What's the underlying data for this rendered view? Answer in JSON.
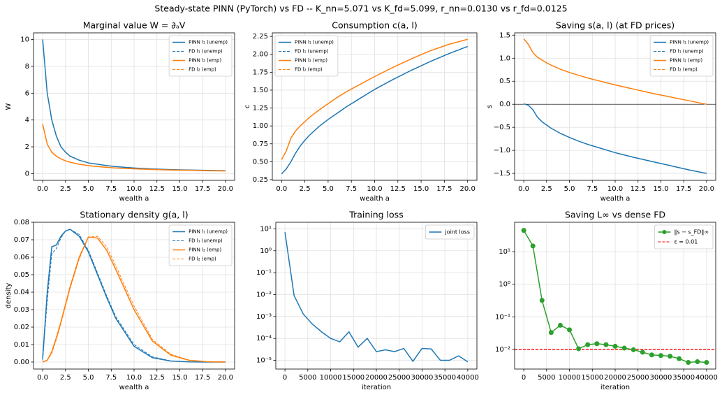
{
  "title": "Steady-state PINN (PyTorch) vs FD  --  K_nn=5.071 vs K_fd=5.099,  r_nn=0.0130 vs r_fd=0.0125",
  "chart_data": [
    {
      "type": "line",
      "title": "Marginal value  W = ∂ₐV",
      "x_label": "wealth a",
      "y_label": "W",
      "x": [
        0,
        0.5,
        1,
        1.5,
        2,
        2.5,
        3,
        4,
        5,
        6,
        7,
        8,
        10,
        12,
        14,
        16,
        18,
        20
      ],
      "xlim": [
        -1,
        21
      ],
      "ylim": [
        -0.5,
        10.5
      ],
      "xticks": [
        {
          "value": 0,
          "label": "0.0"
        },
        2.5,
        {
          "value": 5,
          "label": "5.0"
        },
        7.5,
        {
          "value": 10,
          "label": "10.0"
        },
        12.5,
        {
          "value": 15,
          "label": "15.0"
        },
        17.5,
        {
          "value": 20,
          "label": "20.0"
        }
      ],
      "yticks": [
        0,
        2,
        4,
        6,
        8,
        10
      ],
      "grid": true,
      "legend": "upper right",
      "series": [
        {
          "name": "PINN l₁ (unemp)",
          "color": "#1f77b4",
          "style": "solid",
          "values": [
            10.0,
            6.0,
            4.0,
            2.8,
            2.0,
            1.6,
            1.3,
            1.0,
            0.8,
            0.7,
            0.6,
            0.52,
            0.42,
            0.35,
            0.3,
            0.27,
            0.24,
            0.22
          ]
        },
        {
          "name": "FD l₁ (unemp)",
          "color": "#1f77b4",
          "style": "dashed",
          "values": [
            10.0,
            6.0,
            4.0,
            2.8,
            2.0,
            1.6,
            1.3,
            1.0,
            0.8,
            0.7,
            0.6,
            0.52,
            0.42,
            0.35,
            0.3,
            0.27,
            0.24,
            0.22
          ]
        },
        {
          "name": "PINN l₂ (emp)",
          "color": "#ff7f0e",
          "style": "solid",
          "values": [
            3.7,
            2.2,
            1.6,
            1.3,
            1.1,
            0.95,
            0.85,
            0.7,
            0.6,
            0.52,
            0.47,
            0.42,
            0.36,
            0.31,
            0.27,
            0.25,
            0.22,
            0.2
          ]
        },
        {
          "name": "FD l₂ (emp)",
          "color": "#ff7f0e",
          "style": "dashed",
          "values": [
            3.7,
            2.2,
            1.6,
            1.3,
            1.1,
            0.95,
            0.85,
            0.7,
            0.6,
            0.52,
            0.47,
            0.42,
            0.36,
            0.31,
            0.27,
            0.25,
            0.22,
            0.2
          ]
        }
      ]
    },
    {
      "type": "line",
      "title": "Consumption  c(a, l)",
      "x_label": "wealth a",
      "y_label": "c",
      "x": [
        0,
        0.5,
        1,
        1.5,
        2,
        2.5,
        3,
        4,
        5,
        6,
        7,
        8,
        10,
        12,
        14,
        16,
        18,
        20
      ],
      "xlim": [
        -1,
        21
      ],
      "ylim": [
        0.24,
        2.3
      ],
      "xticks": [
        {
          "value": 0,
          "label": "0.0"
        },
        2.5,
        {
          "value": 5,
          "label": "5.0"
        },
        7.5,
        {
          "value": 10,
          "label": "10.0"
        },
        12.5,
        {
          "value": 15,
          "label": "15.0"
        },
        17.5,
        {
          "value": 20,
          "label": "20.0"
        }
      ],
      "yticks": [
        0.25,
        {
          "value": 0.5,
          "label": "0.50"
        },
        0.75,
        {
          "value": 1,
          "label": "1.00"
        },
        1.25,
        {
          "value": 1.5,
          "label": "1.50"
        },
        1.75,
        {
          "value": 2,
          "label": "2.00"
        },
        2.25
      ],
      "grid": true,
      "legend": "upper left",
      "series": [
        {
          "name": "PINN l₁ (unemp)",
          "color": "#1f77b4",
          "style": "solid",
          "values": [
            0.33,
            0.4,
            0.5,
            0.62,
            0.72,
            0.8,
            0.87,
            0.99,
            1.09,
            1.18,
            1.27,
            1.35,
            1.51,
            1.65,
            1.78,
            1.9,
            2.01,
            2.11
          ]
        },
        {
          "name": "FD l₁ (unemp)",
          "color": "#1f77b4",
          "style": "dashed",
          "values": [
            0.33,
            0.4,
            0.5,
            0.62,
            0.72,
            0.8,
            0.87,
            0.99,
            1.09,
            1.18,
            1.27,
            1.35,
            1.51,
            1.65,
            1.78,
            1.9,
            2.01,
            2.11
          ]
        },
        {
          "name": "PINN l₂ (emp)",
          "color": "#ff7f0e",
          "style": "solid",
          "values": [
            0.53,
            0.65,
            0.83,
            0.93,
            1.0,
            1.06,
            1.12,
            1.22,
            1.31,
            1.4,
            1.48,
            1.55,
            1.69,
            1.82,
            1.94,
            2.05,
            2.14,
            2.21
          ]
        },
        {
          "name": "FD l₂ (emp)",
          "color": "#ff7f0e",
          "style": "dashed",
          "values": [
            0.53,
            0.65,
            0.83,
            0.93,
            1.0,
            1.06,
            1.12,
            1.22,
            1.31,
            1.4,
            1.48,
            1.55,
            1.69,
            1.82,
            1.94,
            2.05,
            2.14,
            2.21
          ]
        }
      ]
    },
    {
      "type": "line",
      "title": "Saving  s(a, l)  (at FD prices)",
      "x_label": "wealth a",
      "y_label": "s",
      "x": [
        0,
        0.5,
        1,
        1.5,
        2,
        2.5,
        3,
        4,
        5,
        6,
        7,
        8,
        10,
        12,
        14,
        16,
        18,
        20
      ],
      "xlim": [
        -1,
        21
      ],
      "ylim": [
        -1.65,
        1.55
      ],
      "zero_line": true,
      "xticks": [
        {
          "value": 0,
          "label": "0.0"
        },
        2.5,
        {
          "value": 5,
          "label": "5.0"
        },
        7.5,
        {
          "value": 10,
          "label": "10.0"
        },
        12.5,
        {
          "value": 15,
          "label": "15.0"
        },
        17.5,
        {
          "value": 20,
          "label": "20.0"
        }
      ],
      "yticks": [
        {
          "value": -1.5,
          "label": "−1.5"
        },
        {
          "value": -1,
          "label": "−1.0"
        },
        {
          "value": -0.5,
          "label": "−0.5"
        },
        {
          "value": 0,
          "label": "0.0"
        },
        0.5,
        {
          "value": 1,
          "label": "1.0"
        },
        1.5
      ],
      "grid": true,
      "legend": "upper right",
      "series": [
        {
          "name": "PINN l₁ (unemp)",
          "color": "#1f77b4",
          "style": "solid",
          "values": [
            0.01,
            -0.02,
            -0.12,
            -0.28,
            -0.38,
            -0.45,
            -0.52,
            -0.63,
            -0.72,
            -0.8,
            -0.87,
            -0.93,
            -1.05,
            -1.15,
            -1.24,
            -1.33,
            -1.42,
            -1.5
          ]
        },
        {
          "name": "FD l₁ (unemp)",
          "color": "#1f77b4",
          "style": "dashed",
          "values": [
            0.01,
            -0.02,
            -0.12,
            -0.28,
            -0.38,
            -0.45,
            -0.52,
            -0.63,
            -0.72,
            -0.8,
            -0.87,
            -0.93,
            -1.05,
            -1.15,
            -1.24,
            -1.33,
            -1.42,
            -1.5
          ]
        },
        {
          "name": "PINN l₂ (emp)",
          "color": "#ff7f0e",
          "style": "solid",
          "values": [
            1.42,
            1.3,
            1.12,
            1.02,
            0.96,
            0.9,
            0.85,
            0.76,
            0.69,
            0.63,
            0.57,
            0.52,
            0.42,
            0.33,
            0.24,
            0.16,
            0.08,
            0.0
          ]
        },
        {
          "name": "FD l₂ (emp)",
          "color": "#ff7f0e",
          "style": "dashed",
          "values": [
            1.42,
            1.3,
            1.12,
            1.02,
            0.96,
            0.9,
            0.85,
            0.76,
            0.69,
            0.63,
            0.57,
            0.52,
            0.42,
            0.33,
            0.24,
            0.16,
            0.08,
            0.0
          ]
        }
      ]
    },
    {
      "type": "line",
      "title": "Stationary density  g(a, l)",
      "x_label": "wealth a",
      "y_label": "density",
      "x": [
        0,
        0.5,
        1,
        1.5,
        2,
        2.5,
        3,
        4,
        5,
        6,
        7,
        8,
        10,
        12,
        14,
        16,
        18,
        20
      ],
      "xlim": [
        -1,
        21
      ],
      "ylim": [
        -0.004,
        0.08
      ],
      "xticks": [
        {
          "value": 0,
          "label": "0.0"
        },
        2.5,
        {
          "value": 5,
          "label": "5.0"
        },
        7.5,
        {
          "value": 10,
          "label": "10.0"
        },
        12.5,
        {
          "value": 15,
          "label": "15.0"
        },
        17.5,
        {
          "value": 20,
          "label": "20.0"
        }
      ],
      "yticks": [
        {
          "value": 0,
          "label": "0.00"
        },
        0.01,
        0.02,
        0.03,
        0.04,
        0.05,
        0.06,
        0.07,
        0.08
      ],
      "grid": true,
      "legend": "upper right",
      "series": [
        {
          "name": "PINN l₁ (unemp)",
          "color": "#1f77b4",
          "style": "solid",
          "values": [
            0.002,
            0.04,
            0.066,
            0.067,
            0.072,
            0.075,
            0.076,
            0.072,
            0.063,
            0.05,
            0.037,
            0.025,
            0.009,
            0.0025,
            0.0006,
            0.0001,
            0,
            0
          ]
        },
        {
          "name": "FD l₁ (unemp)",
          "color": "#1f77b4",
          "style": "dashed",
          "values": [
            0.001,
            0.035,
            0.062,
            0.065,
            0.071,
            0.075,
            0.076,
            0.073,
            0.064,
            0.051,
            0.038,
            0.026,
            0.01,
            0.003,
            0.0007,
            0.0001,
            0,
            0
          ]
        },
        {
          "name": "PINN l₂ (emp)",
          "color": "#ff7f0e",
          "style": "solid",
          "values": [
            0,
            0.001,
            0.006,
            0.014,
            0.023,
            0.033,
            0.043,
            0.06,
            0.0715,
            0.071,
            0.064,
            0.053,
            0.03,
            0.012,
            0.004,
            0.001,
            0.0002,
            0
          ]
        },
        {
          "name": "FD l₂ (emp)",
          "color": "#ff7f0e",
          "style": "dashed",
          "values": [
            0,
            0.001,
            0.005,
            0.013,
            0.022,
            0.032,
            0.042,
            0.059,
            0.0715,
            0.072,
            0.066,
            0.055,
            0.032,
            0.013,
            0.0045,
            0.0012,
            0.0002,
            0
          ]
        }
      ]
    },
    {
      "type": "line",
      "title": "Training loss",
      "x_label": "iteration",
      "log_y": true,
      "x": [
        0,
        2000,
        4000,
        6000,
        8000,
        10000,
        12000,
        14000,
        16000,
        18000,
        20000,
        22000,
        24000,
        26000,
        28000,
        30000,
        32000,
        34000,
        36000,
        38000,
        40000
      ],
      "xlim": [
        -2000,
        42000
      ],
      "ylim": [
        4e-06,
        20
      ],
      "xticks": [
        0,
        5000,
        10000,
        15000,
        20000,
        25000,
        30000,
        35000,
        40000
      ],
      "yticks": [
        {
          "value": 1e-05,
          "label": "10⁻⁵"
        },
        {
          "value": 0.0001,
          "label": "10⁻⁴"
        },
        {
          "value": 0.001,
          "label": "10⁻³"
        },
        {
          "value": 0.01,
          "label": "10⁻²"
        },
        {
          "value": 0.1,
          "label": "10⁻¹"
        },
        {
          "value": 1,
          "label": "10⁰"
        },
        {
          "value": 10,
          "label": "10¹"
        }
      ],
      "grid": true,
      "legend": "upper right",
      "series": [
        {
          "name": "joint loss",
          "color": "#1f77b4",
          "style": "solid",
          "values": [
            7,
            0.009,
            0.0013,
            0.00045,
            0.0002,
            0.0001,
            7e-05,
            0.0002,
            4e-05,
            0.0001,
            2.5e-05,
            3e-05,
            2.5e-05,
            3.5e-05,
            9e-06,
            3.5e-05,
            3.3e-05,
            1e-05,
            1e-05,
            1.6e-05,
            8.5e-06
          ]
        }
      ]
    },
    {
      "type": "line",
      "title": "Saving L∞ vs dense FD",
      "x_label": "iteration",
      "log_y": true,
      "x": [
        0,
        2000,
        4000,
        6000,
        8000,
        10000,
        12000,
        14000,
        16000,
        18000,
        20000,
        22000,
        24000,
        26000,
        28000,
        30000,
        32000,
        34000,
        36000,
        38000,
        40000
      ],
      "xlim": [
        -2000,
        42000
      ],
      "ylim": [
        0.0025,
        80
      ],
      "xticks": [
        0,
        5000,
        10000,
        15000,
        20000,
        25000,
        30000,
        35000,
        40000
      ],
      "yticks": [
        {
          "value": 0.01,
          "label": "10⁻²"
        },
        {
          "value": 0.1,
          "label": "10⁻¹"
        },
        {
          "value": 1,
          "label": "10⁰"
        },
        {
          "value": 10,
          "label": "10¹"
        }
      ],
      "grid": true,
      "legend": "upper right",
      "series": [
        {
          "name": "‖s − s_FD‖∞",
          "color": "#2ca02c",
          "style": "solid",
          "marker": "circle",
          "values": [
            45,
            15,
            0.32,
            0.033,
            0.055,
            0.04,
            0.0105,
            0.014,
            0.015,
            0.014,
            0.0125,
            0.011,
            0.0098,
            0.0082,
            0.0068,
            0.0065,
            0.0062,
            0.0052,
            0.004,
            0.0042,
            0.004
          ]
        }
      ],
      "reference_line": {
        "name": "ε = 0.01",
        "value": 0.01,
        "color": "#ff0000",
        "style": "dashed"
      }
    }
  ]
}
